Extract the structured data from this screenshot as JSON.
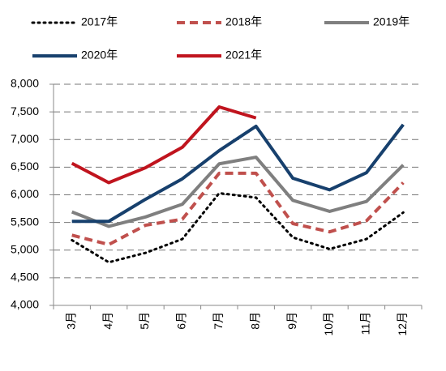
{
  "chart_data": {
    "type": "line",
    "categories": [
      "3月",
      "4月",
      "5月",
      "6月",
      "7月",
      "8月",
      "9月",
      "10月",
      "11月",
      "12月"
    ],
    "series": [
      {
        "name": "2017年",
        "color": "#000000",
        "style": "dotted",
        "values": [
          5180,
          4780,
          4950,
          5200,
          6030,
          5950,
          5230,
          5020,
          5200,
          5680
        ]
      },
      {
        "name": "2018年",
        "color": "#c0504d",
        "style": "dashed",
        "values": [
          5270,
          5100,
          5450,
          5560,
          6390,
          6390,
          5480,
          5330,
          5530,
          6220
        ]
      },
      {
        "name": "2019年",
        "color": "#7f7f7f",
        "style": "solid",
        "values": [
          5690,
          5430,
          5600,
          5830,
          6560,
          6680,
          5900,
          5700,
          5880,
          6540
        ]
      },
      {
        "name": "2020年",
        "color": "#17406d",
        "style": "solid",
        "values": [
          5520,
          5520,
          5920,
          6290,
          6800,
          7240,
          6300,
          6090,
          6400,
          7270
        ]
      },
      {
        "name": "2021年",
        "color": "#c0141e",
        "style": "solid",
        "values": [
          6570,
          6220,
          6490,
          6860,
          7590,
          7390,
          null,
          null,
          null,
          null
        ]
      }
    ],
    "ylim": [
      4000,
      8000
    ],
    "yticks": [
      {
        "value": 4000,
        "label": "4,000"
      },
      {
        "value": 4500,
        "label": "4,500"
      },
      {
        "value": 5000,
        "label": "5,000"
      },
      {
        "value": 5500,
        "label": "5,500"
      },
      {
        "value": 6000,
        "label": "6,000"
      },
      {
        "value": 6500,
        "label": "6,500"
      },
      {
        "value": 7000,
        "label": "7,000"
      },
      {
        "value": 7500,
        "label": "7,500"
      },
      {
        "value": 8000,
        "label": "8,000"
      }
    ],
    "grid": true,
    "legend": "top"
  }
}
